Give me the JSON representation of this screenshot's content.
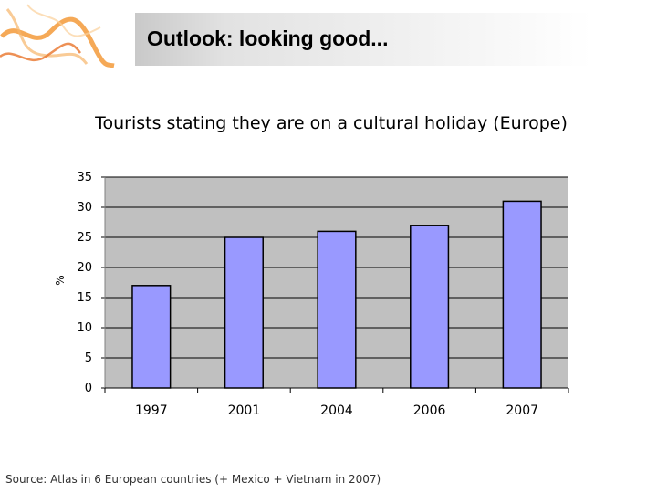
{
  "header": {
    "title": "Outlook: looking good..."
  },
  "logo": {
    "icon": "orange-smoke-swirl-logo"
  },
  "chart_data": {
    "type": "bar",
    "title": "Tourists stating they are on a cultural holiday (Europe)",
    "xlabel": "",
    "ylabel": "%",
    "categories": [
      "1997",
      "2001",
      "2004",
      "2006",
      "2007"
    ],
    "values": [
      17,
      25,
      26,
      27,
      31
    ],
    "ylim": [
      0,
      35
    ],
    "yticks": [
      "0",
      "5",
      "10",
      "15",
      "20",
      "25",
      "30",
      "35"
    ],
    "grid": true,
    "legend": "none",
    "colors": {
      "bar": "#9999ff",
      "plot_background": "#c0c0c0",
      "bar_edge": "#000000"
    }
  },
  "footer": {
    "source": "Source: Atlas in 6 European countries (+ Mexico + Vietnam in 2007)"
  }
}
